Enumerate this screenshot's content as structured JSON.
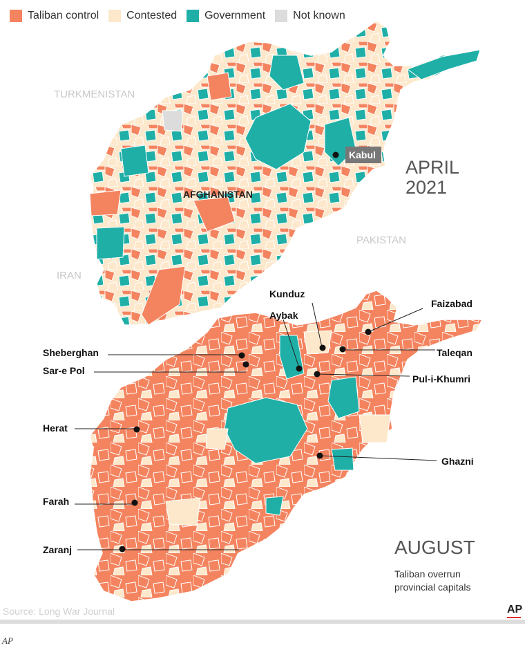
{
  "legend": [
    {
      "label": "Taliban control",
      "color": "#f4845f"
    },
    {
      "label": "Contested",
      "color": "#fde8cc"
    },
    {
      "label": "Government",
      "color": "#1fafa7"
    },
    {
      "label": "Not known",
      "color": "#dcdcdc"
    }
  ],
  "top_map": {
    "title_line1": "APRIL",
    "title_line2": "2021",
    "countries": [
      "TURKMENISTAN",
      "IRAN",
      "PAKISTAN"
    ],
    "country_name": "AFGHANISTAN",
    "capital": "Kabul"
  },
  "bottom_map": {
    "title": "AUGUST",
    "caption_line1": "Taliban overrun",
    "caption_line2": "provincial capitals",
    "cities": [
      "Kunduz",
      "Faizabad",
      "Aybak",
      "Sheberghan",
      "Taleqan",
      "Sar-e Pol",
      "Pul-i-Khumri",
      "Herat",
      "Ghazni",
      "Farah",
      "Zaranj"
    ]
  },
  "source": "Source: Long War Journal",
  "logo": "AP",
  "credit": "AP"
}
